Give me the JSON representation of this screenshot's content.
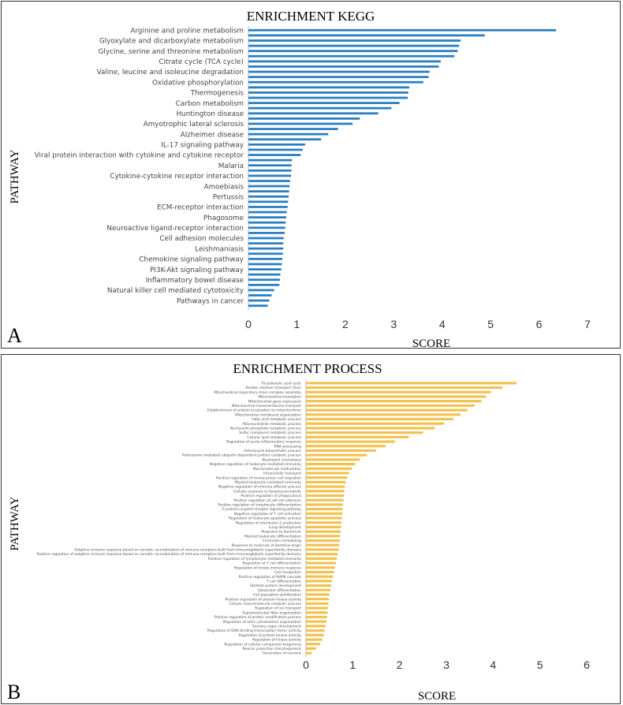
{
  "chart_data": [
    {
      "type": "bar",
      "orientation": "horizontal",
      "panel_label": "A",
      "title": "ENRICHMENT KEGG",
      "xlabel": "SCORE",
      "ylabel": "PATHWAY",
      "xlim": [
        0,
        7
      ],
      "xticks": [
        0,
        1,
        2,
        3,
        4,
        5,
        6,
        7
      ],
      "color": "#2b7ec1",
      "grid": false,
      "categories": [
        "Arginine and proline metabolism",
        "",
        "Glyoxylate and dicarboxylate metabolism",
        "",
        "Glycine, serine and threonine metabolism",
        "",
        "Citrate cycle (TCA cycle)",
        "",
        "Valine, leucine and isoleucine degradation",
        "",
        "Oxidative phosphorylation",
        "",
        "Thermogenesis",
        "",
        "Carbon metabolism",
        "",
        "Huntington disease",
        "",
        "Amyotrophic lateral sclerosis",
        "",
        "Alzheimer disease",
        "",
        "IL-17 signaling pathway",
        "",
        "Viral protein interaction with cytokine and cytokine receptor",
        "",
        "Malaria",
        "",
        "Cytokine-cytokine receptor interaction",
        "",
        "Amoebiasis",
        "",
        "Pertussis",
        "",
        "ECM-receptor interaction",
        "",
        "Phagosome",
        "",
        "Neuroactive ligand-receptor interaction",
        "",
        "Cell adhesion molecules",
        "",
        "Leishmaniasis",
        "",
        "Chemokine signaling pathway",
        "",
        "PI3K-Akt signaling pathway",
        "",
        "Inflammatory bowel disease",
        "",
        "Natural killer cell mediated cytotoxicity",
        "",
        "Pathways in cancer",
        ""
      ],
      "values": [
        6.35,
        4.88,
        4.38,
        4.35,
        4.32,
        4.25,
        3.97,
        3.93,
        3.74,
        3.72,
        3.61,
        3.32,
        3.3,
        3.29,
        3.12,
        2.95,
        2.68,
        2.3,
        2.15,
        1.85,
        1.65,
        1.5,
        1.17,
        1.12,
        1.08,
        0.9,
        0.89,
        0.89,
        0.88,
        0.86,
        0.85,
        0.84,
        0.83,
        0.82,
        0.81,
        0.79,
        0.78,
        0.77,
        0.76,
        0.75,
        0.73,
        0.72,
        0.72,
        0.71,
        0.7,
        0.69,
        0.68,
        0.66,
        0.65,
        0.64,
        0.53,
        0.48,
        0.43,
        0.4
      ]
    },
    {
      "type": "bar",
      "orientation": "horizontal",
      "panel_label": "B",
      "title": "ENRICHMENT PROCESS",
      "xlabel": "SCORE",
      "ylabel": "PATHWAY",
      "xlim": [
        0,
        6
      ],
      "xticks": [
        0,
        1,
        2,
        3,
        4,
        5,
        6
      ],
      "color": "#f2c14e",
      "grid": false,
      "categories": [
        "Tricarboxylic acid cycle",
        "Aerobic electron transport chain",
        "Mitochondrial respiratory chain complex assembly",
        "Mitochondrial translation",
        "Mitochondrial gene expression",
        "Mitochondrial transmembrane transport",
        "Establishment of protein localization to mitochondrion",
        "Mitochondrial membrane organization",
        "Fatty acid metabolic process",
        "Ribonucleotide metabolic process",
        "Nucleoside phosphate metabolic process",
        "Sulfur compound metabolic process",
        "Cellular lipid metabolic process",
        "Regulation of acute inflammatory response",
        "RNA processing",
        "Heterocycle biosynthetic process",
        "Proteasome-mediated ubiquitin-dependent protein catabolic process",
        "Neutrophil chemotaxis",
        "Negative regulation of leukocyte mediated immunity",
        "Macromolecule methylation",
        "Intracellular transport",
        "Positive regulation of mononuclear cell migration",
        "Myeloid leukocyte mediated immunity",
        "Negative regulation of immune effector process",
        "Cellular response to lipopolysaccharide",
        "Positive regulation of phagocytosis",
        "Positive regulation of cell-cell adhesion",
        "Positive regulation of lymphocyte differentiation",
        "G protein-coupled receptor signaling pathway",
        "Negative regulation of T cell activation",
        "Regulation of leukocyte apoptotic process",
        "Regulation of interleukin-1 production",
        "Lung development",
        "Response to bacterium",
        "Myeloid leukocyte differentiation",
        "Chromatin remodeling",
        "Response to molecule of bacterial origin",
        "Adaptive immune response based on somatic recombination of immune receptors built from immunoglobulin superfamily domains",
        "Positive regulation of adaptive immune response based on somatic recombination of immune receptors built from immunoglobulin superfamily domains",
        "Positive regulation of lymphocyte mediated immunity",
        "Regulation of T cell differentiation",
        "Regulation of innate immune response",
        "Cell recognition",
        "Positive regulation of MAPK cascade",
        "T cell differentiation",
        "Skeletal system development",
        "Osteoclast differentiation",
        "Cell population proliferation",
        "Positive regulation of protein kinase activity",
        "Cellular macromolecule catabolic process",
        "Regulation of ion transport",
        "Supramolecular fiber organization",
        "Positive regulation of protein modification process",
        "Regulation of actin cytoskeleton organization",
        "Sensory organ development",
        "Regulation of DNA-binding transcription factor activity",
        "Regulation of protein kinase activity",
        "Regulation of kinase activity",
        "Regulation of cellular component biogenesis",
        "Neuron projection morphogenesis",
        "Generation of neurons"
      ],
      "values": [
        4.5,
        4.2,
        3.95,
        3.85,
        3.75,
        3.6,
        3.45,
        3.3,
        3.15,
        2.95,
        2.75,
        2.5,
        2.2,
        1.9,
        1.7,
        1.5,
        1.3,
        1.15,
        1.05,
        0.98,
        0.92,
        0.88,
        0.85,
        0.83,
        0.82,
        0.81,
        0.8,
        0.79,
        0.78,
        0.78,
        0.77,
        0.76,
        0.75,
        0.74,
        0.73,
        0.72,
        0.71,
        0.7,
        0.68,
        0.66,
        0.64,
        0.62,
        0.6,
        0.58,
        0.56,
        0.54,
        0.52,
        0.5,
        0.49,
        0.48,
        0.47,
        0.46,
        0.45,
        0.44,
        0.42,
        0.4,
        0.38,
        0.35,
        0.3,
        0.22,
        0.12
      ]
    }
  ]
}
